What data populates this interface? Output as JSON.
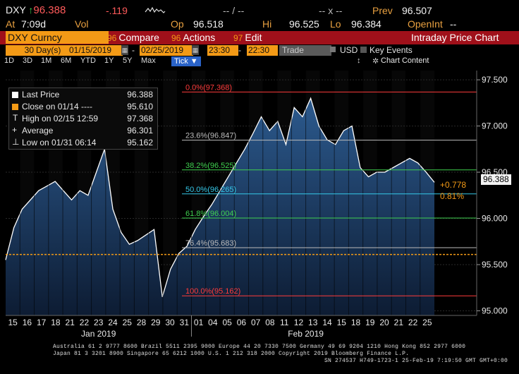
{
  "header": {
    "ticker": "DXY",
    "arrow": "↑",
    "price": "96.388",
    "change": "-.119",
    "at_label": "At",
    "at_time": "7:09d",
    "vol_label": "Vol",
    "op_label": "Op",
    "op_value": "96.518",
    "hi_label": "Hi",
    "hi_value": "96.525",
    "lo_label": "Lo",
    "lo_value": "96.384",
    "blank1": "-- / --",
    "blank2": "-- x --",
    "prev_label": "Prev",
    "prev_value": "96.507",
    "openint_label": "OpenInt",
    "openint_value": "--"
  },
  "toolbar": {
    "security": "DXY Curncy",
    "compare_num": "96",
    "compare_label": "Compare",
    "actions_num": "96",
    "actions_label": "Actions",
    "edit_num": "97",
    "edit_label": "Edit",
    "title": "Intraday Price Chart"
  },
  "controls": {
    "period_value": "30",
    "period_unit": "Day(s)",
    "start_date": "01/15/2019",
    "end_date": "02/25/2019",
    "start_time": "23:30",
    "end_time": "22:30",
    "market_field": "Trade",
    "currency": "USD",
    "key_events": "Key Events"
  },
  "ranges": {
    "items": [
      "1D",
      "3D",
      "1M",
      "6M",
      "YTD",
      "1Y",
      "5Y",
      "Max"
    ],
    "tick_label": "Tick ▼",
    "chart_content": "Chart Content"
  },
  "legend": {
    "rows": [
      {
        "label": "Last Price",
        "value": "96.388",
        "marker": "#ffffff"
      },
      {
        "label": "Close on 01/14 ----",
        "value": "95.610",
        "marker": "#f39a16"
      },
      {
        "label": "High on 02/15 12:59",
        "value": "97.368",
        "marker": "T"
      },
      {
        "label": "Average",
        "value": "96.301",
        "marker": "+"
      },
      {
        "label": "Low on 01/31 06:14",
        "value": "95.162",
        "marker": "⊥"
      }
    ]
  },
  "fib_labels": [
    {
      "text": "0.0%(97.368)",
      "color": "#ff3b3b"
    },
    {
      "text": "23.6%(96.847)",
      "color": "#bbbbbb"
    },
    {
      "text": "38.2%(96.525)",
      "color": "#3fd04f"
    },
    {
      "text": "50.0%(96.265)",
      "color": "#35c8e8"
    },
    {
      "text": "61.8%(96.004)",
      "color": "#3fd04f"
    },
    {
      "text": "76.4%(95.683)",
      "color": "#bbbbbb"
    },
    {
      "text": "100.0%(95.162)",
      "color": "#ff3b3b"
    }
  ],
  "change_labels": {
    "abs": "+0.778",
    "pct": "0.81%"
  },
  "last_price_tag": "96.388",
  "colors": {
    "accent": "#f39a16",
    "red": "#a0101a",
    "area": "#1b3b64"
  },
  "chart_data": {
    "type": "area",
    "ylim": [
      94.95,
      97.6
    ],
    "y_ticks": [
      "95.000",
      "95.500",
      "96.000",
      "96.500",
      "97.000",
      "97.500"
    ],
    "x_ticks": [
      "15",
      "16",
      "17",
      "18",
      "21",
      "22",
      "23",
      "24",
      "25",
      "28",
      "29",
      "30",
      "31",
      "01",
      "04",
      "05",
      "06",
      "07",
      "08",
      "11",
      "12",
      "13",
      "14",
      "15",
      "18",
      "19",
      "20",
      "21",
      "22",
      "25"
    ],
    "month_labels": [
      "Jan 2019",
      "Feb 2019"
    ],
    "series": [
      {
        "values": [
          95.55,
          95.9,
          96.1,
          96.2,
          96.3,
          96.35,
          96.4,
          96.3,
          96.2,
          96.3,
          96.25,
          96.5,
          96.75,
          96.1,
          95.85,
          95.72,
          95.76,
          95.82,
          95.88,
          95.15,
          95.45,
          95.62,
          95.7,
          95.88,
          96.02,
          96.15,
          96.3,
          96.45,
          96.6,
          96.75,
          96.92,
          97.1,
          96.95,
          97.05,
          96.8,
          97.2,
          97.1,
          97.3,
          97.0,
          96.85,
          96.8,
          96.95,
          97.0,
          96.55,
          96.45,
          96.5,
          96.5,
          96.55,
          96.6,
          96.65,
          96.6,
          96.5,
          96.39
        ]
      }
    ],
    "reference_lines": [
      {
        "y": 97.368
      },
      {
        "y": 96.847
      },
      {
        "y": 96.525
      },
      {
        "y": 96.265
      },
      {
        "y": 96.004
      },
      {
        "y": 95.683
      },
      {
        "y": 95.162
      },
      {
        "y": 95.61
      }
    ]
  },
  "footer": {
    "line1": "Australia 61 2 9777 8600 Brazil 5511 2395 9000 Europe 44 20 7330 7500 Germany 49 69 9204 1210 Hong Kong 852 2977 6000",
    "line2": "Japan 81 3 3201 8900          Singapore 65 6212 1000          U.S. 1 212 318 2000                 Copyright 2019 Bloomberg Finance L.P.",
    "line3": "SN 274537 H749-1723-1 25-Feb-19  7:19:50 GMT  GMT+0:00"
  }
}
